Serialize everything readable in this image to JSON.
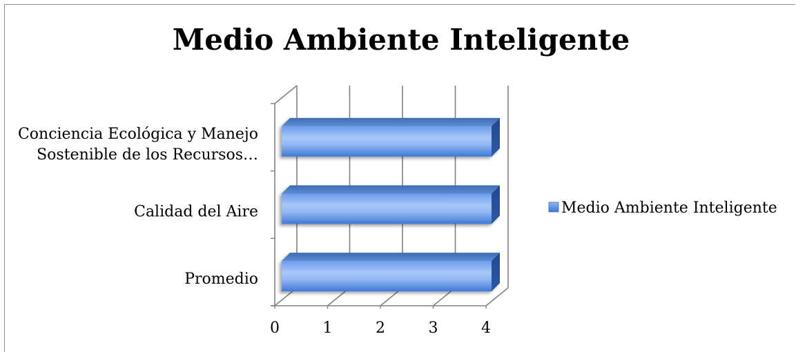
{
  "chart_data": {
    "type": "bar",
    "orientation": "horizontal",
    "style": "3d",
    "title": "Medio Ambiente Inteligente",
    "categories": [
      [
        "Conciencia Ecológica y Manejo",
        "Sostenible de los Recursos…"
      ],
      [
        "Calidad del Aire"
      ],
      [
        "Promedio"
      ]
    ],
    "series": [
      {
        "name": "Medio Ambiente Inteligente",
        "values": [
          4,
          4,
          4
        ],
        "color": "#4f86e0"
      }
    ],
    "x_ticks": [
      "0",
      "1",
      "2",
      "3",
      "4"
    ],
    "xlim": [
      0,
      4
    ],
    "grid": true,
    "legend_position": "right"
  }
}
